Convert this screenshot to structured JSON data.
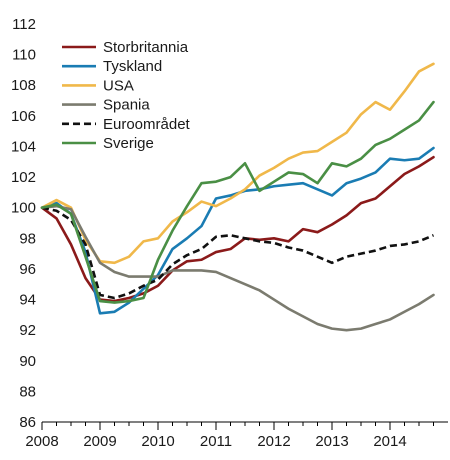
{
  "chart_data": {
    "type": "line",
    "title": "",
    "xlabel": "",
    "ylabel": "",
    "ylim": [
      86,
      112
    ],
    "yticks": [
      86,
      88,
      90,
      92,
      94,
      96,
      98,
      100,
      102,
      104,
      106,
      108,
      110,
      112
    ],
    "xlim": [
      2008,
      2015
    ],
    "xticks": [
      2008,
      2009,
      2010,
      2011,
      2012,
      2013,
      2014
    ],
    "grid": false,
    "legend_position": "top-left",
    "x": [
      2008.0,
      2008.25,
      2008.5,
      2008.75,
      2009.0,
      2009.25,
      2009.5,
      2009.75,
      2010.0,
      2010.25,
      2010.5,
      2010.75,
      2011.0,
      2011.25,
      2011.5,
      2011.75,
      2012.0,
      2012.25,
      2012.5,
      2012.75,
      2013.0,
      2013.25,
      2013.5,
      2013.75,
      2014.0,
      2014.25,
      2014.5,
      2014.75
    ],
    "series": [
      {
        "name": "Storbritannia",
        "color": "#8b1a1a",
        "dash": "",
        "values": [
          100.0,
          99.3,
          97.6,
          95.4,
          94.0,
          93.9,
          94.1,
          94.4,
          94.9,
          95.9,
          96.5,
          96.6,
          97.1,
          97.3,
          98.0,
          97.9,
          98.0,
          97.8,
          98.6,
          98.4,
          98.9,
          99.5,
          100.3,
          100.6,
          101.4,
          102.2,
          102.7,
          103.3
        ]
      },
      {
        "name": "Tyskland",
        "color": "#1a7cb3",
        "dash": "",
        "values": [
          100.0,
          100.3,
          99.6,
          97.1,
          93.1,
          93.2,
          93.8,
          94.7,
          95.6,
          97.3,
          98.0,
          98.8,
          100.6,
          100.8,
          101.1,
          101.2,
          101.4,
          101.5,
          101.6,
          101.2,
          100.8,
          101.6,
          101.9,
          102.3,
          103.2,
          103.1,
          103.2,
          103.9
        ]
      },
      {
        "name": "USA",
        "color": "#f0b84a",
        "dash": "",
        "values": [
          100.0,
          100.5,
          100.0,
          97.9,
          96.5,
          96.4,
          96.8,
          97.8,
          98.0,
          99.1,
          99.7,
          100.4,
          100.1,
          100.6,
          101.2,
          102.1,
          102.6,
          103.2,
          103.6,
          103.7,
          104.3,
          104.9,
          106.1,
          106.9,
          106.4,
          107.6,
          108.9,
          109.4
        ]
      },
      {
        "name": "Spania",
        "color": "#7b7b6f",
        "dash": "",
        "values": [
          100.0,
          100.1,
          99.9,
          98.1,
          96.4,
          95.8,
          95.5,
          95.5,
          95.5,
          95.9,
          95.9,
          95.9,
          95.8,
          95.4,
          95.0,
          94.6,
          94.0,
          93.4,
          92.9,
          92.4,
          92.1,
          92.0,
          92.1,
          92.4,
          92.7,
          93.2,
          93.7,
          94.3
        ]
      },
      {
        "name": "Euroområdet",
        "color": "#111111",
        "dash": "7 4",
        "values": [
          100.0,
          99.8,
          99.2,
          97.6,
          94.3,
          94.1,
          94.4,
          94.9,
          95.3,
          96.3,
          96.9,
          97.3,
          98.1,
          98.2,
          98.0,
          97.8,
          97.7,
          97.4,
          97.2,
          96.8,
          96.4,
          96.8,
          97.0,
          97.2,
          97.5,
          97.6,
          97.8,
          98.2
        ]
      },
      {
        "name": "Sverige",
        "color": "#4a8f45",
        "dash": "",
        "values": [
          100.0,
          100.2,
          99.6,
          96.8,
          93.9,
          93.8,
          93.9,
          94.1,
          96.6,
          98.5,
          100.1,
          101.6,
          101.7,
          102.0,
          102.9,
          101.1,
          101.7,
          102.3,
          102.2,
          101.6,
          102.9,
          102.7,
          103.2,
          104.1,
          104.5,
          105.1,
          105.7,
          106.9
        ]
      }
    ]
  }
}
